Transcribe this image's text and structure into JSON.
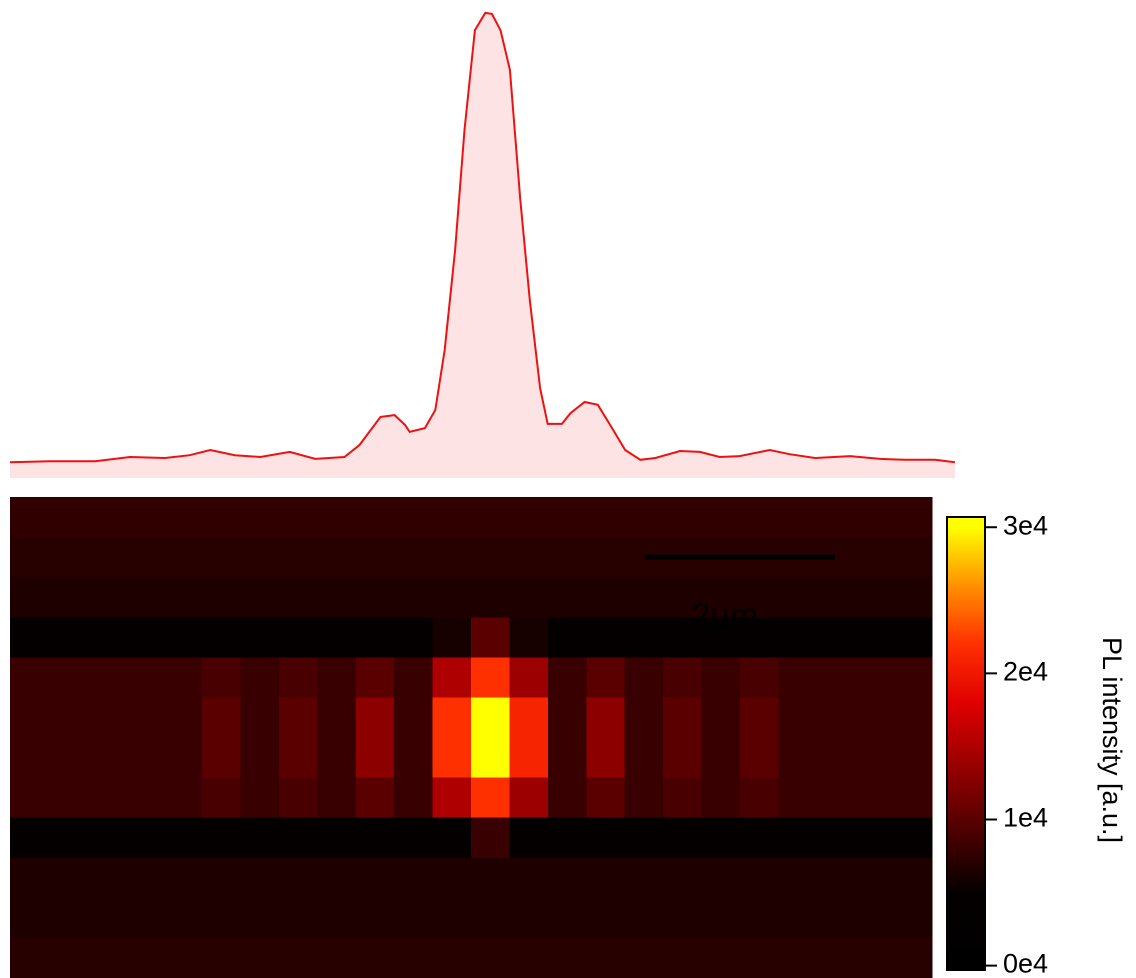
{
  "chart_data": [
    {
      "type": "area",
      "color": "#ee1111",
      "fill": "#fde3e3",
      "x": [
        0,
        4.2,
        9.0,
        12.7,
        16.4,
        19.0,
        21.2,
        23.8,
        26.5,
        29.6,
        32.3,
        35.4,
        37.0,
        39.2,
        40.7,
        41.8,
        42.3,
        43.9,
        45.0,
        46.0,
        47.1,
        48.1,
        49.2,
        50.3,
        51.0,
        51.9,
        52.9,
        54.0,
        55.0,
        56.1,
        56.9,
        58.4,
        59.3,
        60.8,
        62.2,
        63.5,
        65.1,
        66.7,
        68.3,
        70.9,
        73.0,
        75.1,
        77.2,
        80.4,
        82.5,
        85.2,
        88.9,
        92.1,
        94.7,
        97.9,
        100
      ],
      "values": [
        3.4,
        3.6,
        3.6,
        4.5,
        4.3,
        4.9,
        6.0,
        4.9,
        4.5,
        5.6,
        4.1,
        4.5,
        7.1,
        13.1,
        13.5,
        11.4,
        9.9,
        10.7,
        14.6,
        27.5,
        48.9,
        74.7,
        96.1,
        99.8,
        99.6,
        96.1,
        87.6,
        59.7,
        38.2,
        19.3,
        11.6,
        11.6,
        13.9,
        16.3,
        15.7,
        11.4,
        6.0,
        3.9,
        4.3,
        5.8,
        5.6,
        4.5,
        4.7,
        6.0,
        5.1,
        4.3,
        4.7,
        4.1,
        3.9,
        3.9,
        3.4
      ],
      "xlim": [
        0,
        100
      ],
      "ylim": [
        0,
        100
      ]
    },
    {
      "type": "heatmap",
      "annotation": "2µm",
      "axis_label": "PL intensity [a.u.]",
      "clim": [
        -300,
        30700
      ],
      "colorbar_ticks": [
        {
          "value": 0,
          "label": "0e4"
        },
        {
          "value": 10000,
          "label": "1e4"
        },
        {
          "value": 20000,
          "label": "2e4"
        },
        {
          "value": 30000,
          "label": "3e4"
        }
      ],
      "colormap": [
        {
          "value": 0,
          "color": "#000000"
        },
        {
          "value": 5000,
          "color": "#050000"
        },
        {
          "value": 10000,
          "color": "#5a0000"
        },
        {
          "value": 18000,
          "color": "#e00000"
        },
        {
          "value": 22000,
          "color": "#ff3000"
        },
        {
          "value": 26000,
          "color": "#ff9000"
        },
        {
          "value": 30000,
          "color": "#ffff00"
        }
      ],
      "values": [
        [
          7500,
          7500,
          7500,
          7500,
          7500,
          7500,
          7500,
          7500,
          7500,
          7500,
          7500,
          7500,
          7500,
          7500,
          7500,
          7500,
          7500,
          7500,
          7500,
          7500,
          7500,
          7500,
          7500,
          7500
        ],
        [
          7000,
          7000,
          7000,
          7000,
          7000,
          7000,
          7000,
          7000,
          7000,
          7000,
          7000,
          7000,
          7000,
          7000,
          7000,
          7000,
          7000,
          7000,
          7000,
          7000,
          7000,
          7000,
          7000,
          7000
        ],
        [
          6500,
          6500,
          6500,
          6500,
          6500,
          6500,
          6500,
          6500,
          6500,
          6500,
          6500,
          6500,
          6500,
          6500,
          6500,
          6500,
          6500,
          6500,
          6500,
          6500,
          6500,
          6500,
          6500,
          6500
        ],
        [
          4000,
          4000,
          4000,
          4000,
          4000,
          4000,
          4000,
          4000,
          4000,
          4000,
          4000,
          6000,
          10000,
          6000,
          4000,
          4000,
          4000,
          4000,
          4000,
          4000,
          4000,
          4000,
          4000,
          4000
        ],
        [
          8000,
          8000,
          8000,
          8000,
          8000,
          9000,
          8000,
          9000,
          8000,
          10000,
          8000,
          15000,
          22000,
          14000,
          8000,
          10000,
          8000,
          9000,
          8000,
          9000,
          8000,
          8000,
          8000,
          8000
        ],
        [
          8000,
          8000,
          8000,
          8000,
          8000,
          10000,
          8000,
          10000,
          8000,
          13000,
          8000,
          22000,
          30000,
          21000,
          8000,
          13000,
          8000,
          10000,
          8000,
          10000,
          8000,
          8000,
          8000,
          8000
        ],
        [
          8000,
          8000,
          8000,
          8000,
          8000,
          10000,
          8000,
          10000,
          8000,
          13000,
          8000,
          22000,
          30000,
          21000,
          8000,
          13000,
          8000,
          10000,
          8000,
          10000,
          8000,
          8000,
          8000,
          8000
        ],
        [
          8000,
          8000,
          8000,
          8000,
          8000,
          9000,
          8000,
          9000,
          8000,
          10000,
          8000,
          15000,
          22000,
          14000,
          8000,
          10000,
          8000,
          9000,
          8000,
          9000,
          8000,
          8000,
          8000,
          8000
        ],
        [
          4000,
          4000,
          4000,
          4000,
          4000,
          4000,
          4000,
          4000,
          4000,
          4000,
          4000,
          5000,
          8000,
          5000,
          4000,
          4000,
          4000,
          4000,
          4000,
          4000,
          4000,
          4000,
          4000,
          4000
        ],
        [
          6500,
          6500,
          6500,
          6500,
          6500,
          6500,
          6500,
          6500,
          6500,
          6500,
          6500,
          6500,
          6500,
          6500,
          6500,
          6500,
          6500,
          6500,
          6500,
          6500,
          6500,
          6500,
          6500,
          6500
        ],
        [
          6500,
          6500,
          6500,
          6500,
          6500,
          6500,
          6500,
          6500,
          6500,
          6500,
          6500,
          6500,
          6500,
          6500,
          6500,
          6500,
          6500,
          6500,
          6500,
          6500,
          6500,
          6500,
          6500,
          6500
        ],
        [
          7000,
          7000,
          7000,
          7000,
          7000,
          7000,
          7000,
          7000,
          7000,
          7000,
          7000,
          7000,
          7000,
          7000,
          7000,
          7000,
          7000,
          7000,
          7000,
          7000,
          7000,
          7000,
          7000,
          7000
        ]
      ]
    }
  ]
}
